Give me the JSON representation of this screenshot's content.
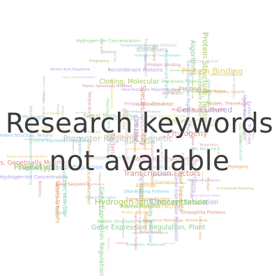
{
  "headline": {
    "line1": "Research keywords",
    "line2": "not available"
  },
  "word_cloud": {
    "words": [
      "Gene Expression Regulation",
      "Plants, Genetically Modified",
      "Gene Expression Regulation, Plant",
      "Promoter Regions, Genetic",
      "Hydrogen-Ion Concentration",
      "Species Specificity",
      "Cloning, Molecular",
      "Sequence Homology, Amino Acid",
      "Recombinant Proteins",
      "Transcription Factors",
      "Signal Transduction",
      "Protein Binding",
      "DNA-Binding Proteins",
      "Drosophila Proteins",
      "Evolution, Molecular",
      "Cell Line, Tumor",
      "Protein Structure, Tertiary",
      "Temperature",
      "Phenotype",
      "Genotype",
      "Cell Line",
      "Zea mays",
      "Algorithms",
      "Bacteria",
      "Computer Simulation",
      "Biomarkers",
      "Cells, Cultured",
      "Models, Theoretical",
      "Environmental Monitoring",
      "Phylogeny",
      "RNA, Bacterial",
      "Plant Proteins",
      "Pregnancy",
      "Mutation",
      "Amino Acid Sequence",
      "Base Sequence"
    ]
  },
  "colors": {
    "headline": "#3c3c3c",
    "palette": [
      "#8fb6e0",
      "#e0a15f",
      "#8fcf8f",
      "#d98fa8",
      "#b59be0",
      "#f0c860",
      "#7ecfcf",
      "#e08f7f",
      "#a6c95f",
      "#c0c0c0"
    ]
  }
}
